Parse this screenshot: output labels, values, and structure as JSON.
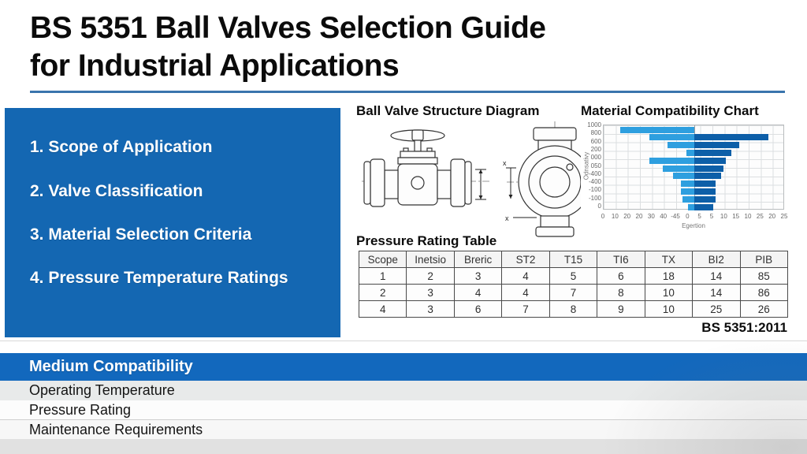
{
  "title": {
    "line1": "BS 5351 Ball Valves Selection Guide",
    "line2": "for Industrial Applications"
  },
  "agenda": {
    "items": [
      "1. Scope of Application",
      "2. Valve Classification",
      "3. Material Selection Criteria",
      "4. Pressure Temperature Ratings"
    ]
  },
  "diagram_section": {
    "heading": "Ball Valve Structure Diagram"
  },
  "chart_section": {
    "heading": "Material Compatibility Chart"
  },
  "chart_data": {
    "type": "bar",
    "orientation": "horizontal-diverging",
    "title": "Material Compatibility Chart",
    "xlabel": "Egertion",
    "ylabel": "Odnsativy",
    "grid": true,
    "legend": false,
    "y_tick_labels": [
      "1000",
      "800",
      "600",
      "200",
      "000",
      "050",
      "-400",
      "-400",
      "-100",
      "-100",
      "0"
    ],
    "x_tick_labels": [
      "0",
      "10",
      "20",
      "20",
      "30",
      "40",
      "-45",
      "0",
      "5",
      "5",
      "10",
      "15",
      "10",
      "25",
      "20",
      "25"
    ],
    "series": [
      {
        "name": "left",
        "color": "#2e9fdf",
        "values": [
          -28,
          -17,
          -10,
          -3,
          -17,
          -12,
          -8,
          -5,
          -5,
          -4.5,
          -2.5
        ]
      },
      {
        "name": "right",
        "color": "#0d5fa8",
        "values": [
          0,
          28,
          17,
          14,
          12,
          11,
          10,
          8,
          8,
          8,
          7
        ]
      }
    ]
  },
  "table_section": {
    "heading": "Pressure Rating Table",
    "columns": [
      "Scope",
      "Inetsio",
      "Breric",
      "ST2",
      "T15",
      "TI6",
      "TX",
      "BI2",
      "PIB"
    ],
    "rows": [
      [
        "1",
        "2",
        "3",
        "4",
        "5",
        "6",
        "18",
        "14",
        "85"
      ],
      [
        "2",
        "3",
        "4",
        "4",
        "7",
        "8",
        "10",
        "14",
        "86"
      ],
      [
        "4",
        "3",
        "6",
        "7",
        "8",
        "9",
        "10",
        "25",
        "26"
      ]
    ],
    "footnote": "BS 5351:2011"
  },
  "footer": {
    "header": "Medium Compatibility",
    "rows": [
      "Operating Temperature",
      "Pressure Rating",
      "Maintenance Requirements"
    ]
  },
  "colors": {
    "accent_blue": "#1467b2",
    "footer_bar_blue": "#1268bd",
    "chart_light_blue": "#2e9fdf",
    "chart_dark_blue": "#0d5fa8",
    "title_rule_blue": "#3a74ad"
  }
}
